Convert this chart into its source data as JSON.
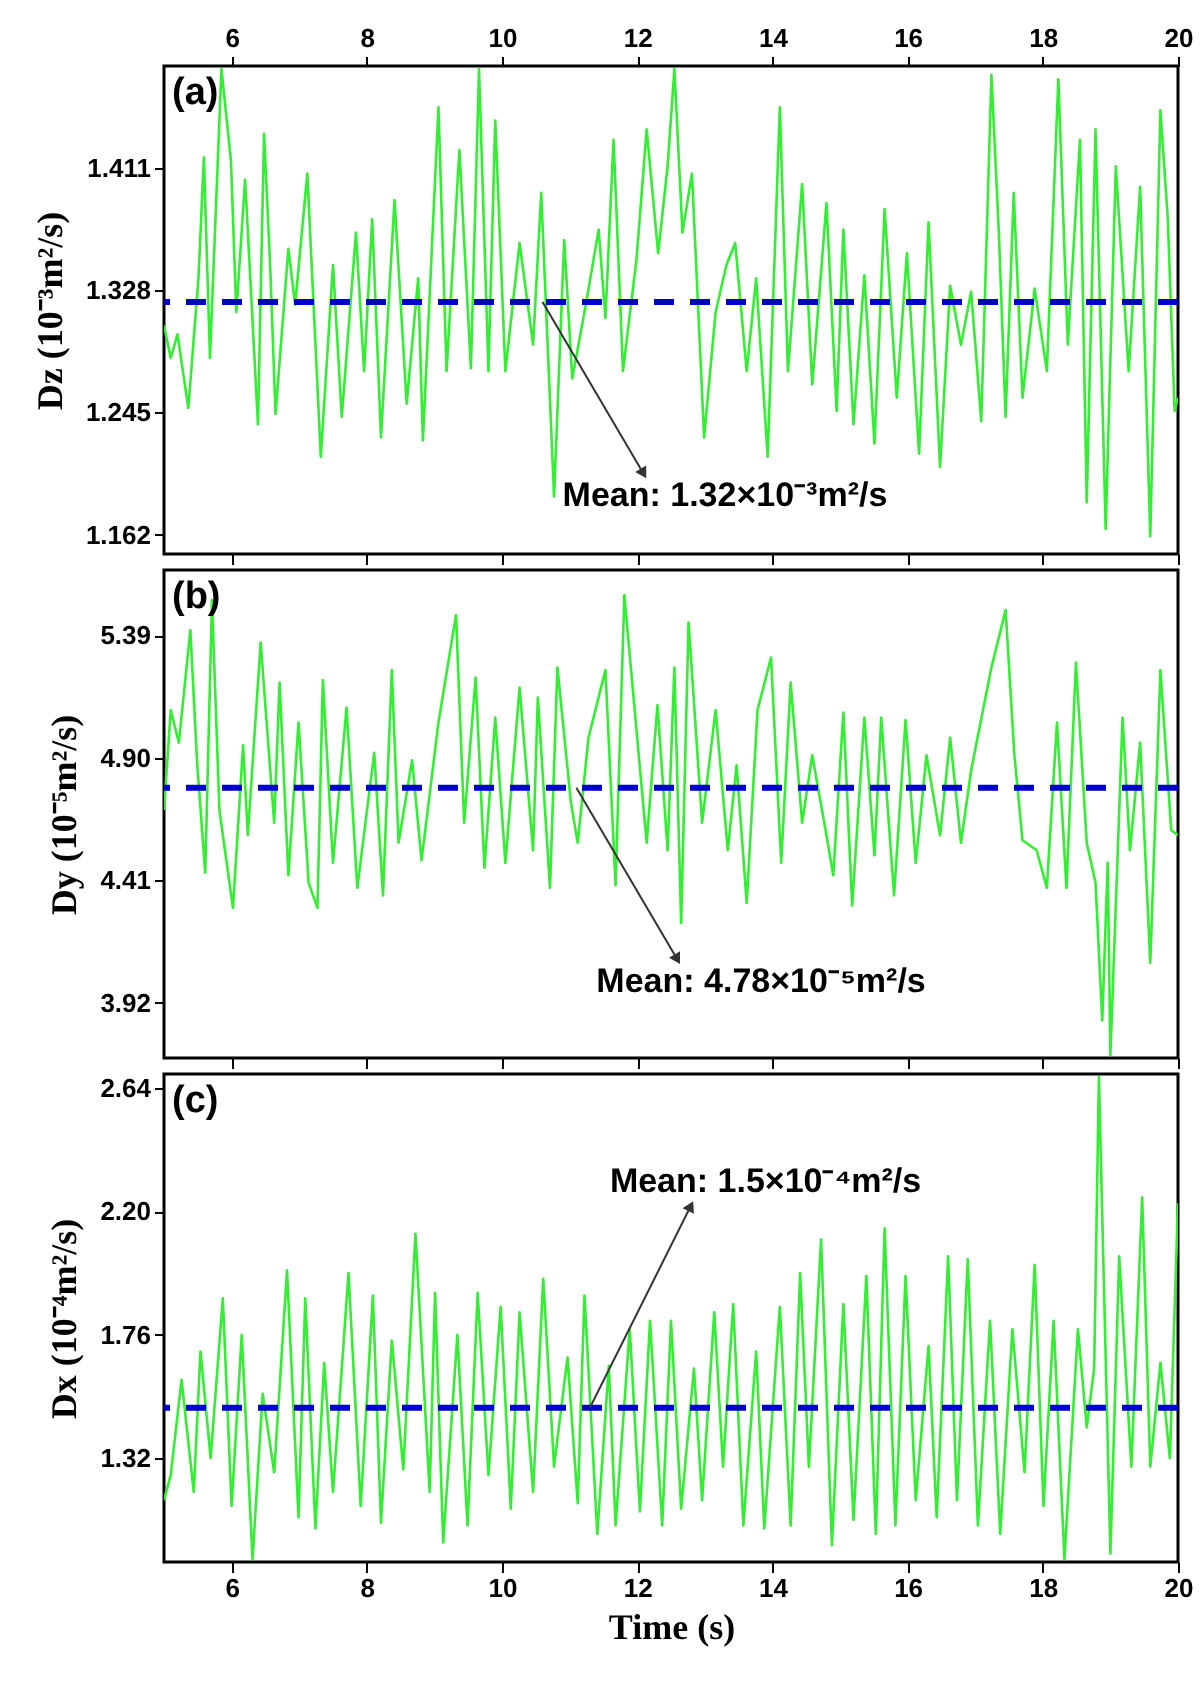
{
  "chart_data": [
    {
      "type": "line",
      "title": "(a)",
      "ylabel": "Dz (10⁻³m²/s)",
      "xlim": [
        5,
        20
      ],
      "xticks": [
        6,
        8,
        10,
        12,
        14,
        16,
        18,
        20
      ],
      "x2lim": [
        5,
        20
      ],
      "x2ticks": [
        6,
        8,
        10,
        12,
        14,
        16,
        18,
        20
      ],
      "tick_labels": "y",
      "ylim": [
        1.149,
        1.48
      ],
      "yticks": [
        1.162,
        1.245,
        1.328,
        1.411
      ],
      "x": [
        5.0,
        5.1,
        5.2,
        5.36,
        5.51,
        5.59,
        5.68,
        5.85,
        5.99,
        6.07,
        6.2,
        6.39,
        6.48,
        6.57,
        6.65,
        6.84,
        6.94,
        7.12,
        7.32,
        7.5,
        7.63,
        7.84,
        7.96,
        8.08,
        8.21,
        8.41,
        8.59,
        8.76,
        8.83,
        9.06,
        9.18,
        9.37,
        9.54,
        9.66,
        9.8,
        9.9,
        10.05,
        10.26,
        10.46,
        10.58,
        10.77,
        10.92,
        11.04,
        11.24,
        11.43,
        11.53,
        11.65,
        11.79,
        11.99,
        12.14,
        12.31,
        12.45,
        12.55,
        12.67,
        12.81,
        12.99,
        13.16,
        13.32,
        13.45,
        13.62,
        13.76,
        13.93,
        14.11,
        14.23,
        14.44,
        14.59,
        14.8,
        14.95,
        15.05,
        15.2,
        15.36,
        15.51,
        15.66,
        15.84,
        15.99,
        16.17,
        16.31,
        16.48,
        16.63,
        16.79,
        16.94,
        17.09,
        17.24,
        17.35,
        17.45,
        17.57,
        17.7,
        17.88,
        18.06,
        18.23,
        18.37,
        18.55,
        18.65,
        18.78,
        18.93,
        19.08,
        19.27,
        19.44,
        19.59,
        19.74,
        19.85,
        19.95,
        20.0
      ],
      "series": [
        {
          "color": "#33ee33",
          "values": [
            1.304,
            1.282,
            1.298,
            1.248,
            1.336,
            1.418,
            1.282,
            1.478,
            1.416,
            1.313,
            1.403,
            1.237,
            1.434,
            1.345,
            1.244,
            1.356,
            1.318,
            1.407,
            1.215,
            1.345,
            1.242,
            1.367,
            1.273,
            1.376,
            1.228,
            1.389,
            1.251,
            1.336,
            1.226,
            1.452,
            1.273,
            1.423,
            1.275,
            1.478,
            1.273,
            1.443,
            1.273,
            1.36,
            1.291,
            1.394,
            1.188,
            1.362,
            1.268,
            1.318,
            1.369,
            1.309,
            1.43,
            1.273,
            1.349,
            1.437,
            1.353,
            1.412,
            1.478,
            1.367,
            1.407,
            1.228,
            1.313,
            1.345,
            1.36,
            1.273,
            1.336,
            1.215,
            1.452,
            1.273,
            1.4,
            1.264,
            1.387,
            1.246,
            1.369,
            1.237,
            1.338,
            1.224,
            1.383,
            1.255,
            1.353,
            1.217,
            1.374,
            1.208,
            1.331,
            1.291,
            1.327,
            1.239,
            1.474,
            1.367,
            1.242,
            1.394,
            1.255,
            1.329,
            1.273,
            1.471,
            1.291,
            1.43,
            1.184,
            1.437,
            1.166,
            1.412,
            1.273,
            1.398,
            1.161,
            1.45,
            1.376,
            1.246,
            1.255
          ]
        }
      ],
      "ref_lines": [
        {
          "axis": "y",
          "value": 1.32,
          "color": "#0000cc",
          "line_style": "dashed"
        }
      ],
      "annotations": [
        {
          "text": "Mean: 1.32×10⁻³m²/s",
          "x": 10.6,
          "y": 1.32
        }
      ]
    },
    {
      "type": "line",
      "title": "(b)",
      "ylabel": "Dy (10⁻⁵m²/s)",
      "xlim": [
        5,
        20
      ],
      "xticks": [
        6,
        8,
        10,
        12,
        14,
        16,
        18,
        20
      ],
      "ylim": [
        3.7,
        5.65
      ],
      "yticks": [
        3.92,
        4.41,
        {
          "value": 4.9,
          "label": "4.90"
        },
        5.39
      ],
      "tick_labels": "y",
      "x": [
        5.0,
        5.1,
        5.22,
        5.39,
        5.49,
        5.61,
        5.71,
        5.82,
        6.02,
        6.17,
        6.24,
        6.43,
        6.63,
        6.71,
        6.84,
        6.99,
        7.14,
        7.27,
        7.35,
        7.5,
        7.7,
        7.86,
        8.11,
        8.24,
        8.37,
        8.47,
        8.67,
        8.81,
        9.06,
        9.32,
        9.44,
        9.61,
        9.74,
        9.9,
        10.05,
        10.26,
        10.46,
        10.53,
        10.71,
        10.82,
        11.02,
        11.12,
        11.28,
        11.53,
        11.68,
        11.81,
        11.99,
        12.14,
        12.3,
        12.45,
        12.55,
        12.65,
        12.76,
        12.96,
        13.16,
        13.34,
        13.47,
        13.62,
        13.78,
        13.98,
        14.13,
        14.27,
        14.44,
        14.59,
        14.8,
        14.9,
        15.05,
        15.18,
        15.36,
        15.51,
        15.61,
        15.8,
        15.97,
        16.12,
        16.28,
        16.48,
        16.63,
        16.79,
        16.94,
        17.24,
        17.45,
        17.58,
        17.7,
        17.91,
        18.06,
        18.21,
        18.35,
        18.49,
        18.65,
        18.78,
        18.88,
        18.96,
        19.0,
        19.18,
        19.29,
        19.44,
        19.59,
        19.74,
        19.9,
        20.0
      ],
      "series": [
        {
          "color": "#33ee33",
          "values": [
            4.69,
            5.09,
            4.96,
            5.41,
            4.88,
            4.44,
            5.53,
            4.69,
            4.3,
            4.95,
            4.59,
            5.36,
            4.64,
            5.2,
            4.43,
            5.04,
            4.4,
            4.3,
            5.21,
            4.48,
            5.1,
            4.38,
            4.92,
            4.35,
            5.25,
            4.56,
            4.89,
            4.49,
            5.04,
            5.47,
            4.64,
            5.22,
            4.46,
            5.06,
            4.48,
            5.18,
            4.53,
            5.14,
            4.38,
            5.26,
            4.72,
            4.56,
            4.98,
            5.25,
            4.39,
            5.55,
            5.01,
            4.56,
            5.11,
            4.53,
            5.26,
            4.24,
            5.44,
            4.64,
            5.09,
            4.53,
            4.87,
            4.32,
            5.09,
            5.3,
            4.48,
            5.2,
            4.64,
            4.91,
            4.59,
            4.43,
            5.08,
            4.31,
            5.06,
            4.51,
            5.06,
            4.35,
            5.05,
            4.48,
            4.91,
            4.59,
            4.98,
            4.56,
            4.85,
            5.26,
            5.49,
            4.91,
            4.57,
            4.53,
            4.38,
            5.04,
            4.38,
            5.28,
            4.56,
            4.4,
            3.85,
            4.48,
            3.71,
            5.06,
            4.53,
            4.96,
            4.08,
            5.25,
            4.61,
            4.59
          ]
        }
      ],
      "ref_lines": [
        {
          "axis": "y",
          "value": 4.78,
          "color": "#0000cc",
          "line_style": "dashed"
        }
      ],
      "annotations": [
        {
          "text": "Mean: 4.78×10⁻⁵m²/s",
          "x": 11.1,
          "y": 4.78
        }
      ]
    },
    {
      "type": "line",
      "title": "(c)",
      "xlabel": "Time (s)",
      "ylabel": "Dx (10⁻⁴m²/s)",
      "xlim": [
        5,
        20
      ],
      "xticks": [
        6,
        8,
        10,
        12,
        14,
        16,
        18,
        20
      ],
      "ylim": [
        0.95,
        2.69
      ],
      "yticks": [
        1.32,
        1.76,
        {
          "value": 2.2,
          "label": "2.20"
        },
        2.64
      ],
      "x": [
        5.0,
        5.1,
        5.26,
        5.44,
        5.54,
        5.69,
        5.87,
        6.0,
        6.15,
        6.31,
        6.46,
        6.63,
        6.82,
        6.99,
        7.09,
        7.24,
        7.37,
        7.5,
        7.73,
        7.91,
        8.09,
        8.21,
        8.37,
        8.54,
        8.72,
        8.93,
        9.01,
        9.13,
        9.34,
        9.49,
        9.64,
        9.8,
        9.98,
        10.13,
        10.26,
        10.46,
        10.61,
        10.77,
        10.97,
        11.12,
        11.22,
        11.41,
        11.58,
        11.68,
        11.89,
        12.04,
        12.19,
        12.37,
        12.5,
        12.65,
        12.84,
        12.96,
        13.14,
        13.27,
        13.42,
        13.57,
        13.76,
        13.88,
        14.11,
        14.27,
        14.41,
        14.54,
        14.72,
        14.88,
        15.05,
        15.2,
        15.39,
        15.53,
        15.66,
        15.82,
        15.97,
        16.12,
        16.31,
        16.43,
        16.6,
        16.73,
        16.89,
        17.04,
        17.22,
        17.37,
        17.55,
        17.73,
        17.88,
        18.01,
        18.16,
        18.32,
        18.52,
        18.65,
        18.76,
        18.83,
        19.0,
        19.13,
        19.31,
        19.47,
        19.59,
        19.74,
        19.88,
        20.0
      ],
      "series": [
        {
          "color": "#33ee33",
          "values": [
            1.17,
            1.26,
            1.6,
            1.2,
            1.7,
            1.32,
            1.89,
            1.15,
            1.76,
            0.96,
            1.55,
            1.27,
            1.99,
            1.11,
            1.89,
            1.07,
            1.66,
            1.2,
            1.98,
            1.15,
            1.9,
            1.09,
            1.74,
            1.28,
            2.12,
            1.2,
            1.91,
            1.02,
            1.76,
            1.08,
            1.91,
            1.26,
            1.86,
            1.14,
            1.84,
            1.2,
            1.96,
            1.29,
            1.68,
            1.16,
            1.9,
            1.05,
            1.65,
            1.08,
            1.78,
            1.13,
            1.81,
            1.08,
            1.81,
            1.14,
            1.64,
            1.17,
            1.84,
            1.29,
            1.87,
            1.08,
            1.7,
            1.07,
            1.86,
            1.08,
            1.98,
            1.29,
            2.1,
            1.01,
            1.87,
            1.1,
            1.97,
            1.05,
            2.14,
            1.08,
            1.97,
            1.17,
            1.72,
            1.11,
            2.04,
            1.17,
            2.03,
            1.08,
            1.81,
            1.05,
            1.78,
            1.27,
            2.01,
            1.15,
            1.81,
            0.96,
            1.78,
            1.43,
            1.64,
            2.68,
            0.98,
            2.04,
            1.29,
            2.25,
            1.29,
            1.66,
            1.32,
            2.23
          ]
        }
      ],
      "ref_lines": [
        {
          "axis": "y",
          "value": 1.5,
          "color": "#0000cc",
          "line_style": "dashed"
        }
      ],
      "annotations": [
        {
          "text": "Mean: 1.5×10⁻⁴m²/s",
          "x": 11.3,
          "y": 1.5
        }
      ]
    }
  ]
}
